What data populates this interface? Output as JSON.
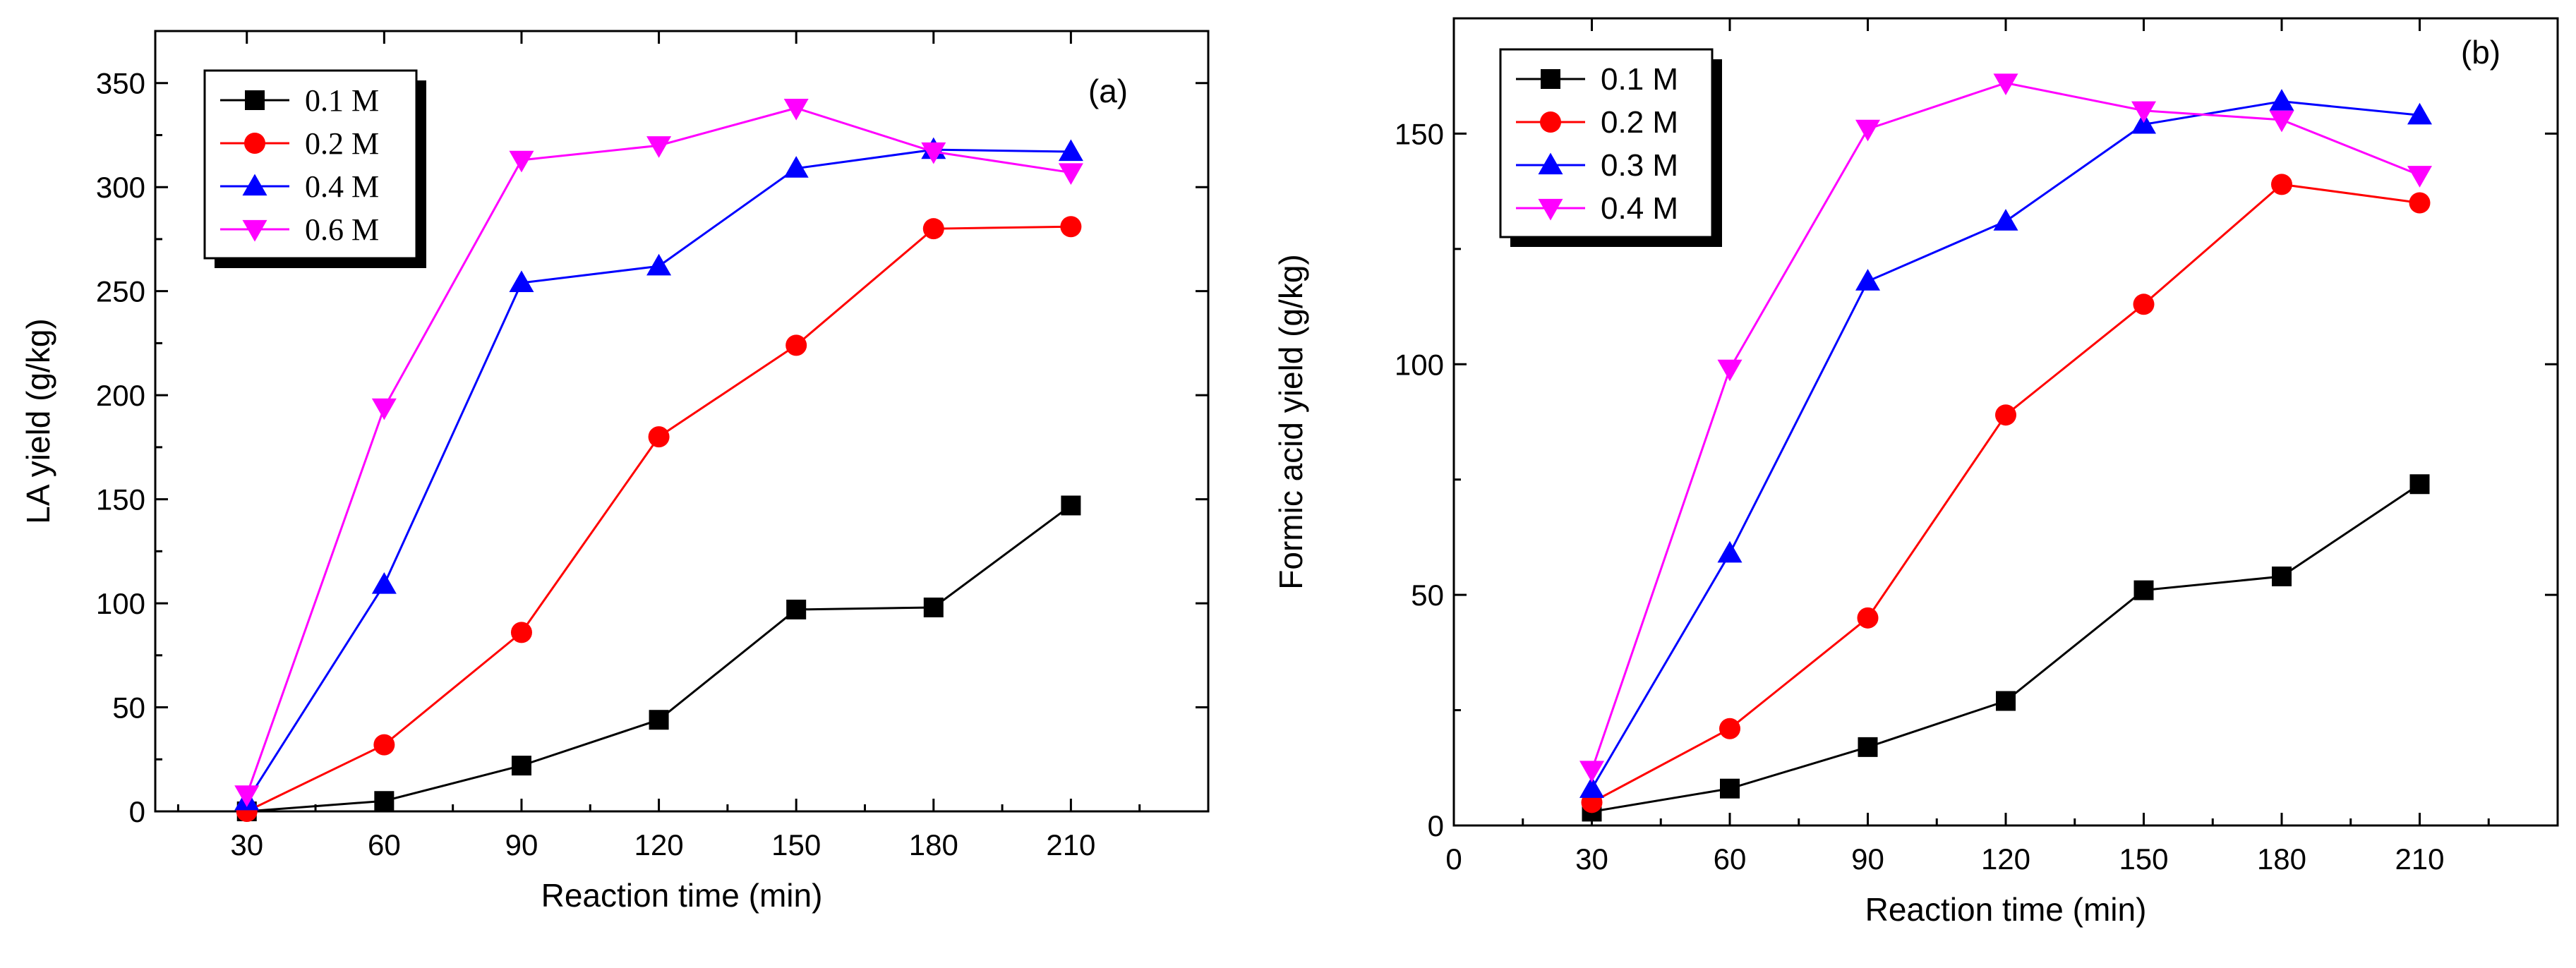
{
  "chart_data": [
    {
      "type": "line",
      "panel_label": "(a)",
      "xlabel": "Reaction time (min)",
      "ylabel": "LA yield (g/kg)",
      "x": [
        30,
        60,
        90,
        120,
        150,
        180,
        210
      ],
      "xlim": [
        10,
        240
      ],
      "ylim": [
        0,
        375
      ],
      "xticks": [
        "30",
        "60",
        "90",
        "120",
        "150",
        "180",
        "210"
      ],
      "xtick_values": [
        30,
        60,
        90,
        120,
        150,
        180,
        210
      ],
      "yticks": [
        "0",
        "50",
        "100",
        "150",
        "200",
        "250",
        "300",
        "350"
      ],
      "ytick_values": [
        0,
        50,
        100,
        150,
        200,
        250,
        300,
        350
      ],
      "legend_position": "top-left",
      "series": [
        {
          "name": "0.1 M",
          "color": "#000000",
          "marker": "square",
          "values": [
            0,
            5,
            22,
            44,
            97,
            98,
            147
          ]
        },
        {
          "name": "0.2 M",
          "color": "#ff0000",
          "marker": "circle",
          "values": [
            0,
            32,
            86,
            180,
            224,
            280,
            281
          ]
        },
        {
          "name": "0.4 M",
          "color": "#0000ff",
          "marker": "triangle-up",
          "values": [
            5,
            109,
            254,
            262,
            309,
            318,
            317
          ]
        },
        {
          "name": "0.6 M",
          "color": "#ff00ff",
          "marker": "triangle-down",
          "values": [
            8,
            194,
            313,
            320,
            338,
            317,
            307
          ]
        }
      ]
    },
    {
      "type": "line",
      "panel_label": "(b)",
      "xlabel": "Reaction time (min)",
      "ylabel": "Formic acid yield (g/kg)",
      "x": [
        30,
        60,
        90,
        120,
        150,
        180,
        210
      ],
      "xlim": [
        0,
        240
      ],
      "ylim": [
        0,
        175
      ],
      "xticks": [
        "0",
        "30",
        "60",
        "90",
        "120",
        "150",
        "180",
        "210"
      ],
      "xtick_values": [
        0,
        30,
        60,
        90,
        120,
        150,
        180,
        210
      ],
      "yticks": [
        "0",
        "50",
        "100",
        "150"
      ],
      "ytick_values": [
        0,
        50,
        100,
        150
      ],
      "legend_position": "top-left",
      "series": [
        {
          "name": "0.1 M",
          "color": "#000000",
          "marker": "square",
          "values": [
            3,
            8,
            17,
            27,
            51,
            54,
            74
          ]
        },
        {
          "name": "0.2 M",
          "color": "#ff0000",
          "marker": "circle",
          "values": [
            5,
            21,
            45,
            89,
            113,
            139,
            135
          ]
        },
        {
          "name": "0.3 M",
          "color": "#0000ff",
          "marker": "triangle-up",
          "values": [
            8,
            59,
            118,
            131,
            152,
            157,
            154
          ]
        },
        {
          "name": "0.4 M",
          "color": "#ff00ff",
          "marker": "triangle-down",
          "values": [
            12,
            99,
            151,
            161,
            155,
            153,
            141
          ]
        }
      ]
    }
  ]
}
